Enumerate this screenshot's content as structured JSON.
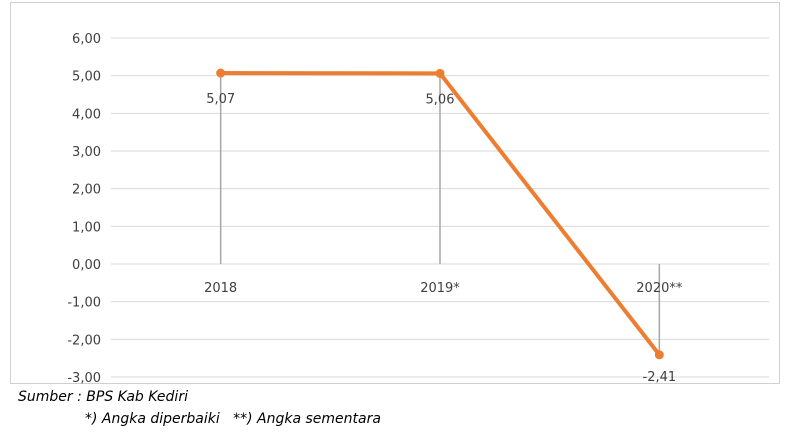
{
  "chart_data": {
    "type": "line",
    "categories": [
      "2018",
      "2019*",
      "2020**"
    ],
    "series": [
      {
        "values": [
          5.07,
          5.06,
          -2.41
        ],
        "color": "#ed7d31"
      }
    ],
    "data_labels": [
      "5,07",
      "5,06",
      "-2,41"
    ],
    "y_ticks": [
      6,
      5,
      4,
      3,
      2,
      1,
      0,
      -1,
      -2,
      -3
    ],
    "y_tick_labels": [
      "6,00",
      "5,00",
      "4,00",
      "3,00",
      "2,00",
      "1,00",
      "0,00",
      "-1,00",
      "-2,00",
      "-3,00"
    ],
    "ylim": [
      -3,
      6
    ],
    "grid": true,
    "drop_lines": true,
    "legend": "none",
    "title": "",
    "xlabel": "",
    "ylabel": ""
  },
  "notes": {
    "source": "Sumber : BPS Kab Kediri",
    "footnote": "*) Angka diperbaiki   **) Angka sementara"
  }
}
